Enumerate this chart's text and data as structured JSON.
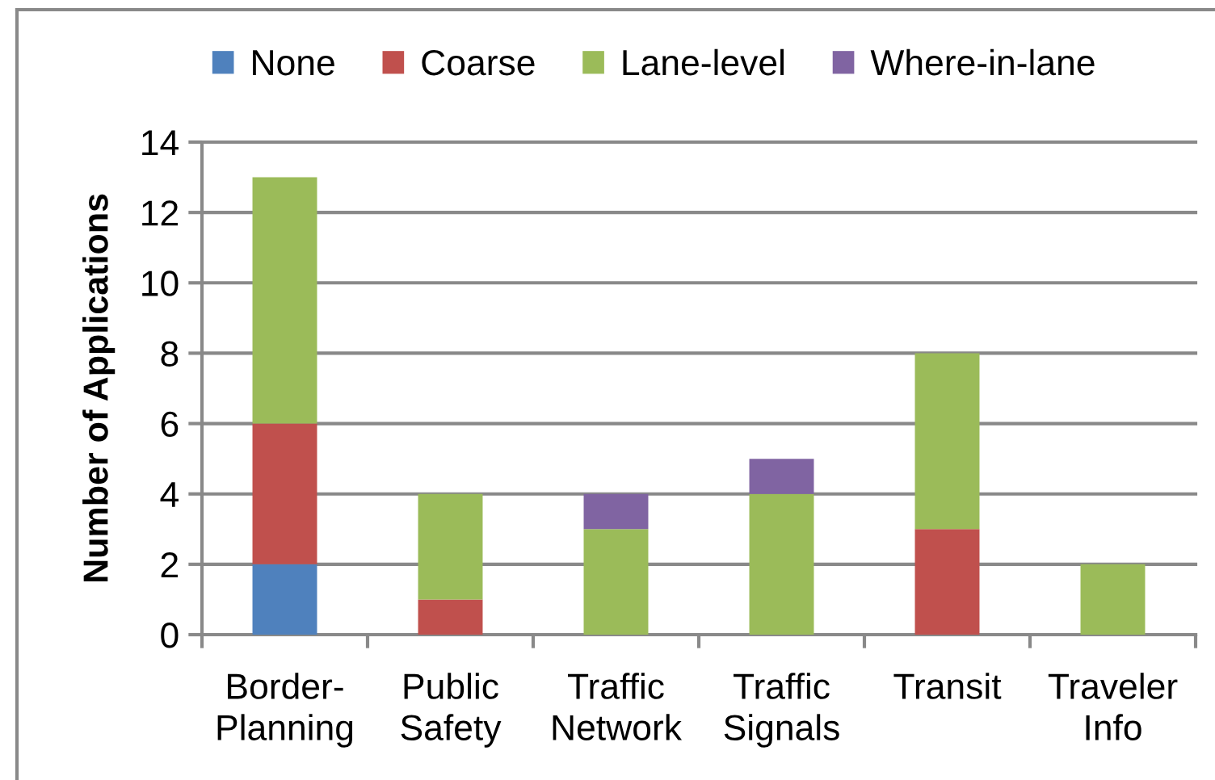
{
  "chart_data": {
    "type": "bar",
    "stacked": true,
    "categories": [
      "Border-\nPlanning",
      "Public\nSafety",
      "Traffic\nNetwork",
      "Traffic\nSignals",
      "Transit",
      "Traveler\nInfo"
    ],
    "series": [
      {
        "name": "None",
        "color": "#4f81bd",
        "values": [
          2,
          null,
          null,
          null,
          null,
          null
        ]
      },
      {
        "name": "Coarse",
        "color": "#c0504d",
        "values": [
          4,
          1,
          null,
          null,
          3,
          null
        ]
      },
      {
        "name": "Lane-level",
        "color": "#9bbb59",
        "values": [
          7,
          3,
          3,
          4,
          5,
          2
        ]
      },
      {
        "name": "Where-in-lane",
        "color": "#8064a2",
        "values": [
          null,
          null,
          1,
          1,
          null,
          null
        ]
      }
    ],
    "ylabel": "Number of Applications",
    "ylim": [
      0,
      14
    ],
    "yticks": [
      0,
      2,
      4,
      6,
      8,
      10,
      12,
      14
    ],
    "grid": "y",
    "legend": "top"
  }
}
